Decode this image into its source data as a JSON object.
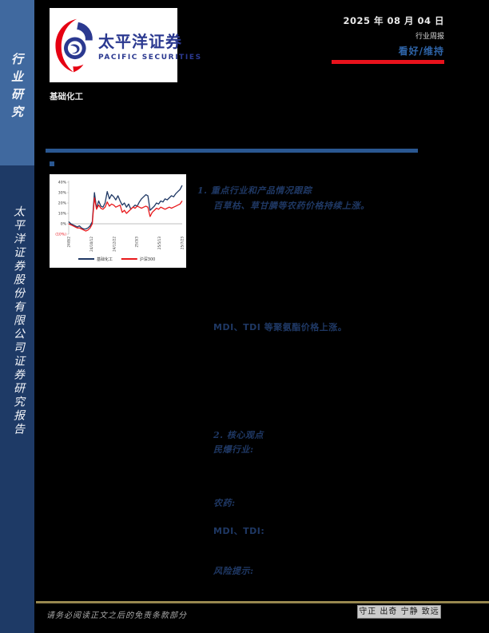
{
  "page": {
    "date": "2025 年 08 月 04 日",
    "report_type": "行业周报",
    "rating": "看好/维持",
    "industry": "基础化工",
    "accent_red": "#e8121c",
    "accent_navy": "#1f3864",
    "sidebar_light_blue": "#40699f",
    "sidebar_dark_blue": "#1e3a66"
  },
  "brand": {
    "name_cn": "太平洋证券",
    "name_en": "PACIFIC SECURITIES",
    "logo_blue": "#2b3990",
    "logo_red": "#e60012"
  },
  "sidebar": {
    "top_label": "行业研究",
    "bottom_label": "太平洋证券股份有限公司证券研究报告"
  },
  "content": {
    "section1_title": "1. 重点行业和产品情况跟踪",
    "section1_line1": "百草枯、草甘膦等农药价格持续上涨。",
    "section1_line2": "MDI、TDI 等聚氨酯价格上涨。",
    "section2_title": "2. 核心观点",
    "topic1": "民爆行业:",
    "topic2": "农药:",
    "topic3": "MDI、TDI:",
    "risk_label": "风险提示:"
  },
  "footer": {
    "disclaimer": "请务必阅读正文之后的免责条款部分",
    "motto": "守正 出奇 宁静 致远"
  },
  "chart_data": {
    "type": "line",
    "title": "",
    "xlabel": "",
    "ylabel": "",
    "ylim": [
      -10,
      40
    ],
    "yticks": [
      40,
      30,
      20,
      10,
      0,
      -10
    ],
    "ytick_labels": [
      "40%",
      "30%",
      "20%",
      "10%",
      "0%",
      "(10%)"
    ],
    "negative_tick_color": "#e8121c",
    "xticklabels": [
      "24/8/2",
      "24/10/12",
      "24/12/22",
      "25/3/3",
      "25/5/13",
      "25/7/23"
    ],
    "grid": false,
    "zero_line": true,
    "legend_position": "bottom",
    "series": [
      {
        "name": "基础化工",
        "color": "#1f3864",
        "values": [
          2,
          0,
          -1,
          -2,
          -3,
          -2,
          -4,
          -5,
          -5,
          -4,
          -2,
          2,
          30,
          15,
          22,
          17,
          16,
          20,
          31,
          24,
          28,
          26,
          23,
          27,
          22,
          18,
          20,
          16,
          19,
          14,
          16,
          18,
          17,
          21,
          24,
          26,
          28,
          27,
          13,
          15,
          17,
          20,
          19,
          22,
          21,
          24,
          23,
          25,
          27,
          26,
          29,
          31,
          33,
          37
        ]
      },
      {
        "name": "沪深300",
        "color": "#e8191c",
        "values": [
          0,
          -1,
          -2,
          -3,
          -4,
          -4,
          -5,
          -6,
          -7,
          -6,
          -4,
          0,
          25,
          14,
          18,
          15,
          14,
          16,
          21,
          17,
          19,
          18,
          16,
          17,
          18,
          11,
          13,
          10,
          12,
          14,
          16,
          15,
          17,
          16,
          15,
          16,
          17,
          16,
          7,
          11,
          13,
          15,
          14,
          16,
          15,
          14,
          15,
          16,
          15,
          16,
          17,
          18,
          19,
          22
        ]
      }
    ]
  }
}
